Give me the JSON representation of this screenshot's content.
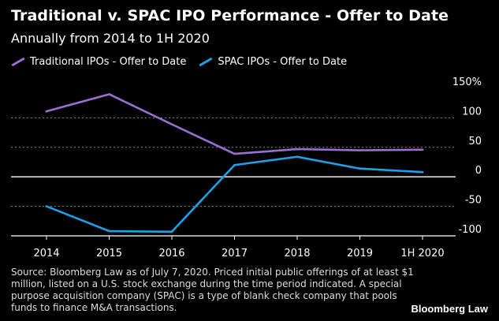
{
  "chart_data": {
    "type": "line",
    "title": "Traditional v. SPAC IPO Performance - Offer to Date",
    "subtitle": "Annually from 2014 to 1H 2020",
    "categories": [
      "2014",
      "2015",
      "2016",
      "2017",
      "2018",
      "2019",
      "1H 2020"
    ],
    "series": [
      {
        "name": "Traditional IPOs - Offer to Date",
        "color": "#9b6fd1",
        "values": [
          111,
          140,
          89,
          39,
          47,
          45,
          46
        ]
      },
      {
        "name": "SPAC IPOs - Offer to Date",
        "color": "#1da1e8",
        "values": [
          -50,
          -92,
          -93,
          20,
          34,
          14,
          8
        ]
      }
    ],
    "yticks": [
      150,
      100,
      50,
      0,
      -50,
      -100
    ],
    "ytick_labels": [
      "150%",
      "100",
      "50",
      "0",
      "-50",
      "-100"
    ],
    "ylim": [
      -100,
      150
    ],
    "xlabel": "",
    "ylabel": ""
  },
  "footer": {
    "source": "Source: Bloomberg Law as of July 7, 2020. Priced initial public offerings of at least $1 million, listed on a U.S. stock exchange during the time period indicated. A special purpose acquisition company (SPAC) is a type of blank check company that pools funds to finance M&A transactions.",
    "brand": "Bloomberg Law"
  }
}
